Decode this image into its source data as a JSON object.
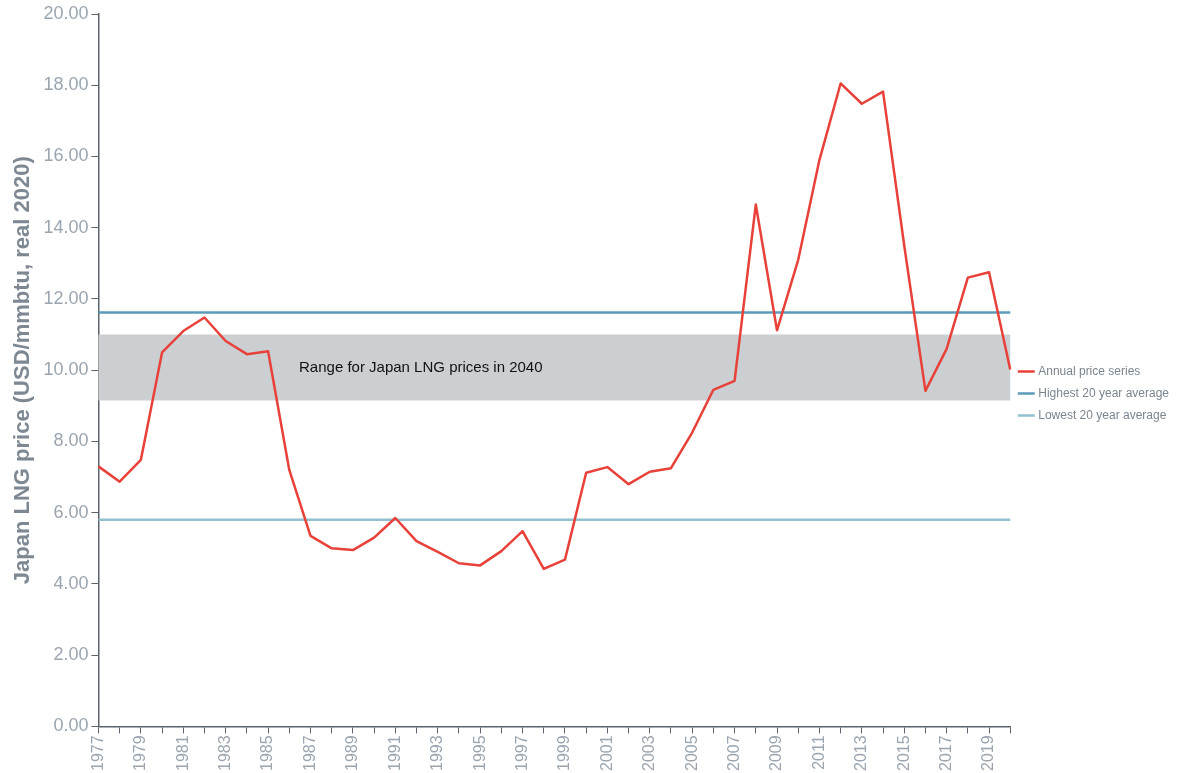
{
  "chart_data": {
    "type": "line",
    "ylabel": "Japan LNG price (USD/mmbtu, real 2020)",
    "categories": [
      "1977",
      null,
      "1979",
      null,
      "1981",
      null,
      "1983",
      null,
      "1985",
      null,
      "1987",
      null,
      "1989",
      null,
      "1991",
      null,
      "1993",
      null,
      "1995",
      null,
      "1997",
      null,
      "1999",
      null,
      "2001",
      null,
      "2003",
      null,
      "2005",
      null,
      "2007",
      null,
      "2009",
      null,
      "2011",
      null,
      "2013",
      null,
      "2015",
      null,
      "2017",
      null,
      "2019",
      null
    ],
    "series": [
      {
        "name": "Annual price series",
        "color": "#e8413a",
        "values": [
          7.3,
          6.87,
          7.48,
          10.5,
          11.1,
          11.48,
          10.82,
          10.45,
          10.53,
          7.2,
          5.35,
          5.0,
          4.95,
          5.3,
          5.85,
          5.2,
          4.9,
          4.58,
          4.52,
          4.92,
          5.48,
          4.42,
          4.68,
          7.12,
          7.28,
          6.8,
          7.15,
          7.25,
          8.25,
          9.45,
          9.7,
          14.65,
          11.12,
          13.1,
          15.9,
          18.05,
          17.48,
          17.82,
          13.5,
          9.42,
          10.6,
          12.6,
          12.75,
          10.02
        ]
      },
      {
        "name": "Highest 20 year average",
        "color": "#5b9bb8",
        "values": [
          11.62,
          11.62,
          11.62,
          11.62,
          11.62,
          11.62,
          11.62,
          11.62,
          11.62,
          11.62,
          11.62,
          11.62,
          11.62,
          11.62,
          11.62,
          11.62,
          11.62,
          11.62,
          11.62,
          11.62,
          11.62,
          11.62,
          11.62,
          11.62,
          11.62,
          11.62,
          11.62,
          11.62,
          11.62,
          11.62,
          11.62,
          11.62,
          11.62,
          11.62,
          11.62,
          11.62,
          11.62,
          11.62,
          11.62,
          11.62,
          11.62,
          11.62,
          11.62,
          11.62
        ]
      },
      {
        "name": "Lowest 20 year average",
        "color": "#93c0d1",
        "values": [
          5.8,
          5.8,
          5.8,
          5.8,
          5.8,
          5.8,
          5.8,
          5.8,
          5.8,
          5.8,
          5.8,
          5.8,
          5.8,
          5.8,
          5.8,
          5.8,
          5.8,
          5.8,
          5.8,
          5.8,
          5.8,
          5.8,
          5.8,
          5.8,
          5.8,
          5.8,
          5.8,
          5.8,
          5.8,
          5.8,
          5.8,
          5.8,
          5.8,
          5.8,
          5.8,
          5.8,
          5.8,
          5.8,
          5.8,
          5.8,
          5.8,
          5.8,
          5.8,
          5.8
        ]
      }
    ],
    "bands": [
      {
        "axis": "y",
        "from": 9.15,
        "to": 11.0,
        "label": "Range for Japan LNG prices in 2040",
        "color": "#cccfd2"
      }
    ],
    "ylim": [
      0,
      20
    ],
    "yticks": [
      {
        "value": 0,
        "label": "0.00"
      },
      {
        "value": 2,
        "label": "2.00"
      },
      {
        "value": 4,
        "label": "4.00"
      },
      {
        "value": 6,
        "label": "6.00"
      },
      {
        "value": 8,
        "label": "8.00"
      },
      {
        "value": 10,
        "label": "10.00"
      },
      {
        "value": 12,
        "label": "12.00"
      },
      {
        "value": 14,
        "label": "14.00"
      },
      {
        "value": 16,
        "label": "16.00"
      },
      {
        "value": 18,
        "label": "18.00"
      },
      {
        "value": 20,
        "label": "20.00"
      }
    ],
    "grid": false,
    "legend": "right",
    "marker": "none",
    "line_style": "solid"
  }
}
